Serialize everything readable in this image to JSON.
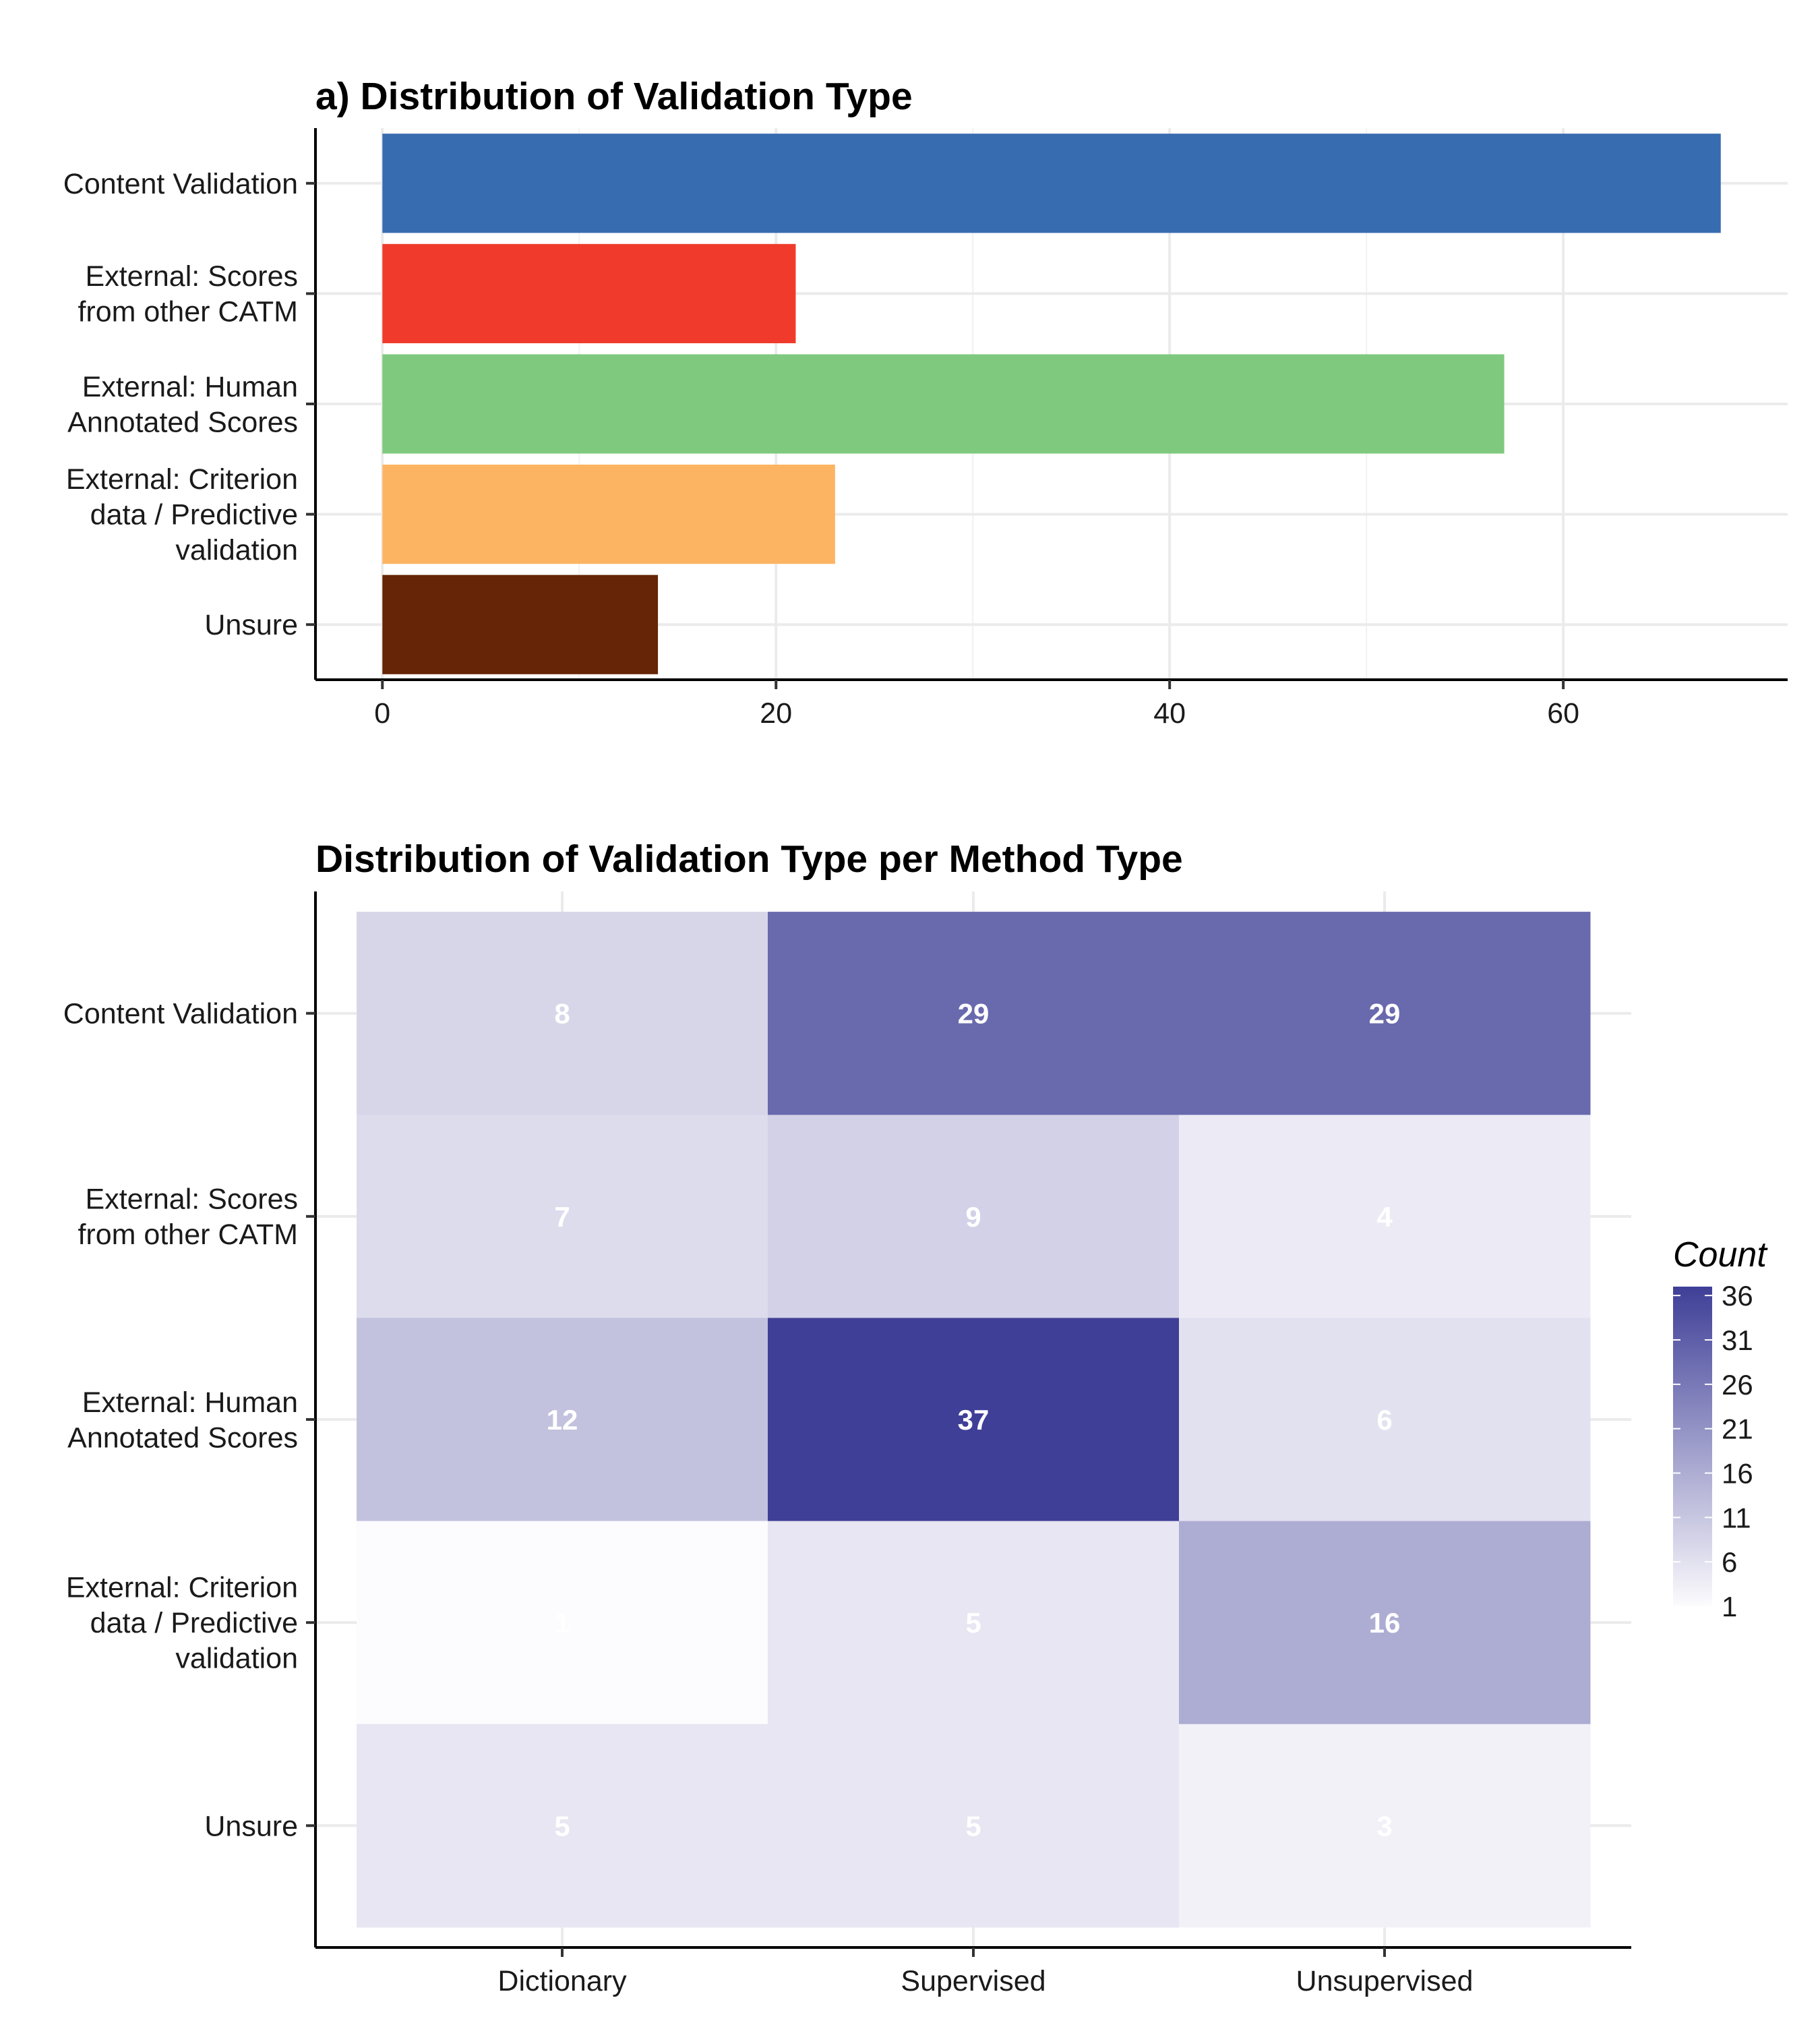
{
  "chart_data": [
    {
      "type": "bar",
      "orientation": "horizontal",
      "title": "a) Distribution of Validation Type",
      "xlabel": "",
      "ylabel": "",
      "categories": [
        "Content Validation",
        "External: Scores from other CATM",
        "External: Human Annotated Scores",
        "External: Criterion data / Predictive validation",
        "Unsure"
      ],
      "category_lines": [
        [
          "Content Validation"
        ],
        [
          "External: Scores",
          "from other CATM"
        ],
        [
          "External: Human",
          "Annotated Scores"
        ],
        [
          "External: Criterion",
          "data / Predictive",
          "validation"
        ],
        [
          "Unsure"
        ]
      ],
      "values": [
        68,
        21,
        57,
        23,
        14
      ],
      "colors": [
        "#386CB0",
        "#F03B2C",
        "#7FC97F",
        "#FDB462",
        "#662506"
      ],
      "xlim": [
        -3.4,
        71.4
      ],
      "xticks": [
        0,
        20,
        40,
        60
      ],
      "xtick_labels": [
        "0",
        "20",
        "40",
        "60"
      ],
      "grid": true,
      "legend": "none"
    },
    {
      "type": "heatmap",
      "title": "Distribution of Validation Type per Method Type",
      "xlabel": "",
      "ylabel": "",
      "x_categories": [
        "Dictionary",
        "Supervised",
        "Unsupervised"
      ],
      "y_categories": [
        "Content Validation",
        "External: Scores from other CATM",
        "External: Human Annotated Scores",
        "External: Criterion data / Predictive validation",
        "Unsure"
      ],
      "y_category_lines": [
        [
          "Content Validation"
        ],
        [
          "External: Scores",
          "from other CATM"
        ],
        [
          "External: Human",
          "Annotated Scores"
        ],
        [
          "External: Criterion",
          "data / Predictive",
          "validation"
        ],
        [
          "Unsure"
        ]
      ],
      "values": [
        [
          8,
          29,
          29
        ],
        [
          7,
          9,
          4
        ],
        [
          12,
          37,
          6
        ],
        [
          1,
          5,
          16
        ],
        [
          5,
          5,
          3
        ]
      ],
      "color_scale": {
        "low": "#FCFBFD",
        "high": "#3F3F98",
        "min": 1,
        "max": 37
      },
      "legend": {
        "title": "Count",
        "ticks": [
          36,
          31,
          26,
          21,
          16,
          11,
          6,
          1
        ],
        "tick_labels": [
          "36",
          "31",
          "26",
          "21",
          "16",
          "11",
          "6",
          "1"
        ],
        "placement": "right"
      },
      "grid": true
    }
  ]
}
